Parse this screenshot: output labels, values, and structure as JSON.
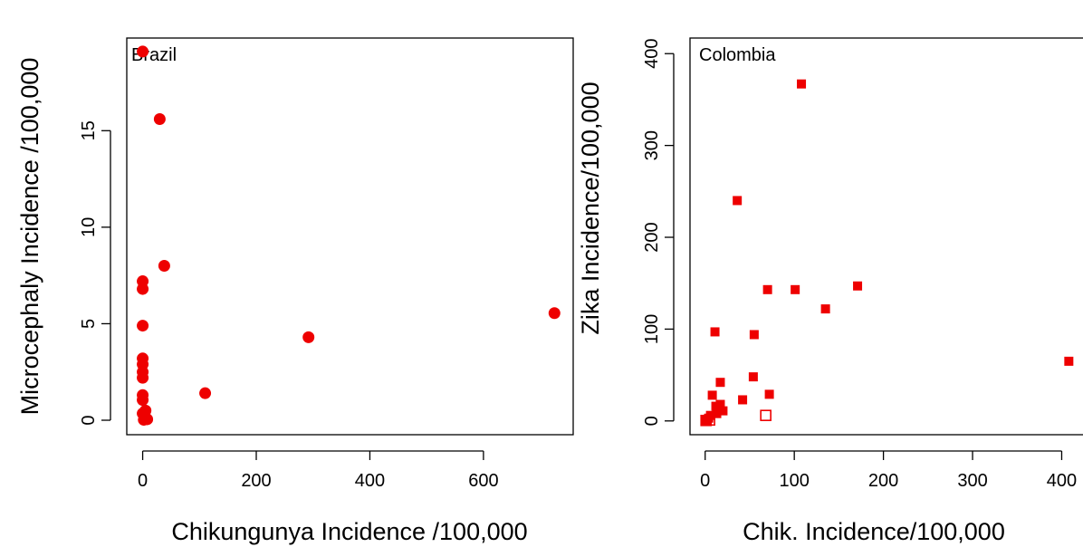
{
  "chart_data": [
    {
      "type": "scatter",
      "title": "Brazil",
      "xlabel": "Chikungunya Incidence /100,000",
      "ylabel": "Microcephaly Incidence /100,000",
      "xlim": [
        -28,
        758
      ],
      "ylim": [
        -0.75,
        19.8
      ],
      "xticks": [
        0,
        200,
        400,
        600
      ],
      "yticks": [
        0,
        5,
        10,
        15
      ],
      "marker": "filled-circle",
      "color": "#ee0000",
      "series": [
        {
          "points": [
            [
              0,
              19.1
            ],
            [
              30,
              15.6
            ],
            [
              38,
              8.0
            ],
            [
              0,
              7.2
            ],
            [
              0,
              6.8
            ],
            [
              0,
              4.9
            ],
            [
              0,
              3.2
            ],
            [
              0,
              2.9
            ],
            [
              0,
              2.5
            ],
            [
              0,
              2.2
            ],
            [
              0,
              1.3
            ],
            [
              0,
              1.05
            ],
            [
              5,
              0.5
            ],
            [
              0,
              0.35
            ],
            [
              3,
              0.25
            ],
            [
              6,
              0.1
            ],
            [
              2,
              0.02
            ],
            [
              8,
              0.05
            ],
            [
              110,
              1.4
            ],
            [
              292,
              4.3
            ],
            [
              725,
              5.55
            ]
          ]
        }
      ]
    },
    {
      "type": "scatter",
      "title": "Colombia",
      "xlabel": "Chik. Incidence/100,000",
      "ylabel": "Zika Incidence/100,000",
      "xlim": [
        -17,
        430
      ],
      "ylim": [
        -15,
        417
      ],
      "xticks": [
        0,
        100,
        200,
        300,
        400
      ],
      "yticks": [
        0,
        100,
        200,
        300,
        400
      ],
      "color": "#ee0000",
      "series": [
        {
          "marker": "filled-square",
          "points": [
            [
              108,
              367
            ],
            [
              36,
              240
            ],
            [
              171,
              147
            ],
            [
              70,
              143
            ],
            [
              101,
              143
            ],
            [
              135,
              122
            ],
            [
              11,
              97
            ],
            [
              55,
              94
            ],
            [
              408,
              65
            ],
            [
              54,
              48
            ],
            [
              17,
              42
            ],
            [
              72,
              29
            ],
            [
              8,
              28
            ],
            [
              42,
              23
            ],
            [
              17,
              18
            ],
            [
              12,
              16
            ],
            [
              20,
              11
            ],
            [
              13,
              8
            ],
            [
              6,
              6
            ],
            [
              4,
              3
            ],
            [
              2,
              1
            ],
            [
              0,
              0.5
            ]
          ]
        },
        {
          "marker": "open-square",
          "points": [
            [
              68,
              6
            ],
            [
              5,
              1
            ],
            [
              1,
              0.5
            ]
          ]
        }
      ]
    }
  ]
}
